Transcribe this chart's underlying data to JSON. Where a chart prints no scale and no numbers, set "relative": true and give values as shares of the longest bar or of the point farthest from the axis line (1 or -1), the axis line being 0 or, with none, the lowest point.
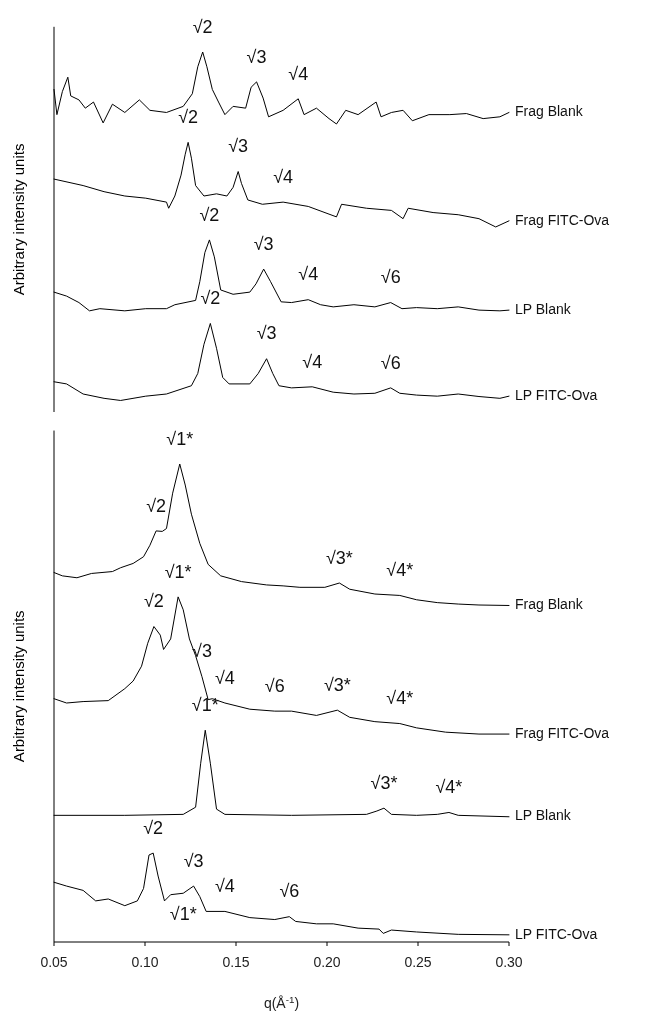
{
  "chart_data": [
    {
      "type": "line",
      "relative": true,
      "ylabel": "Arbitrary intensity units",
      "xlim": [
        0.05,
        0.3
      ],
      "tick_labels": false,
      "series": [
        {
          "name": "Frag Blank",
          "color": "#000000",
          "x": [
            0.05,
            0.0516,
            0.0546,
            0.0576,
            0.0592,
            0.0637,
            0.0672,
            0.0717,
            0.077,
            0.0821,
            0.0889,
            0.0969,
            0.1027,
            0.1118,
            0.121,
            0.126,
            0.129,
            0.1317,
            0.134,
            0.137,
            0.1404,
            0.1439,
            0.1484,
            0.1553,
            0.1583,
            0.1613,
            0.1649,
            0.1679,
            0.1759,
            0.1842,
            0.1874,
            0.1942,
            0.2011,
            0.2052,
            0.2103,
            0.2171,
            0.227,
            0.2297,
            0.2354,
            0.2418,
            0.2469,
            0.256,
            0.2675,
            0.2766,
            0.2858,
            0.295,
            0.3
          ],
          "values": [
            0.896,
            0.826,
            0.89,
            0.93,
            0.878,
            0.867,
            0.844,
            0.861,
            0.803,
            0.855,
            0.832,
            0.867,
            0.838,
            0.832,
            0.849,
            0.884,
            0.959,
            1.0,
            0.959,
            0.896,
            0.861,
            0.826,
            0.849,
            0.844,
            0.902,
            0.917,
            0.872,
            0.82,
            0.838,
            0.87,
            0.826,
            0.844,
            0.815,
            0.8,
            0.838,
            0.826,
            0.861,
            0.82,
            0.832,
            0.838,
            0.809,
            0.826,
            0.826,
            0.829,
            0.815,
            0.82,
            0.832
          ]
        },
        {
          "name": "Frag FITC-Ova",
          "color": "#000000",
          "x": [
            0.05,
            0.066,
            0.0775,
            0.0889,
            0.1004,
            0.1118,
            0.113,
            0.1164,
            0.1198,
            0.1221,
            0.1237,
            0.1255,
            0.1278,
            0.1324,
            0.1393,
            0.145,
            0.1484,
            0.1512,
            0.153,
            0.1565,
            0.1645,
            0.1759,
            0.1897,
            0.2052,
            0.208,
            0.2217,
            0.2354,
            0.2418,
            0.2446,
            0.2583,
            0.2721,
            0.2835,
            0.2927,
            0.3
          ],
          "values": [
            0.647,
            0.629,
            0.612,
            0.6,
            0.594,
            0.583,
            0.566,
            0.6,
            0.658,
            0.716,
            0.749,
            0.705,
            0.629,
            0.6,
            0.606,
            0.6,
            0.624,
            0.668,
            0.635,
            0.589,
            0.577,
            0.583,
            0.571,
            0.542,
            0.577,
            0.566,
            0.56,
            0.537,
            0.566,
            0.554,
            0.548,
            0.537,
            0.514,
            0.531
          ]
        },
        {
          "name": "LP Blank",
          "color": "#000000",
          "x": [
            0.05,
            0.0569,
            0.0637,
            0.0695,
            0.0752,
            0.0889,
            0.1004,
            0.1118,
            0.1164,
            0.1278,
            0.1301,
            0.1329,
            0.1354,
            0.1381,
            0.1416,
            0.1484,
            0.1576,
            0.161,
            0.1652,
            0.169,
            0.1748,
            0.1805,
            0.1897,
            0.1965,
            0.2034,
            0.2148,
            0.2263,
            0.235,
            0.2412,
            0.2492,
            0.2606,
            0.2721,
            0.2835,
            0.295,
            0.3
          ],
          "values": [
            0.333,
            0.322,
            0.304,
            0.281,
            0.287,
            0.281,
            0.287,
            0.287,
            0.298,
            0.31,
            0.362,
            0.443,
            0.478,
            0.431,
            0.339,
            0.327,
            0.333,
            0.356,
            0.397,
            0.362,
            0.306,
            0.304,
            0.312,
            0.298,
            0.292,
            0.298,
            0.292,
            0.304,
            0.287,
            0.29,
            0.287,
            0.292,
            0.283,
            0.281,
            0.283
          ]
        },
        {
          "name": "LP FITC-Ova",
          "color": "#000000",
          "x": [
            0.05,
            0.0569,
            0.066,
            0.0775,
            0.0866,
            0.1004,
            0.1118,
            0.1255,
            0.129,
            0.1324,
            0.1359,
            0.1393,
            0.1427,
            0.1462,
            0.1576,
            0.1622,
            0.1668,
            0.1702,
            0.1736,
            0.1805,
            0.1919,
            0.2034,
            0.2148,
            0.2263,
            0.235,
            0.24,
            0.2492,
            0.2606,
            0.2721,
            0.2835,
            0.295,
            0.3
          ],
          "values": [
            0.084,
            0.078,
            0.05,
            0.038,
            0.032,
            0.044,
            0.05,
            0.073,
            0.107,
            0.188,
            0.246,
            0.177,
            0.096,
            0.078,
            0.078,
            0.107,
            0.148,
            0.107,
            0.073,
            0.067,
            0.07,
            0.055,
            0.05,
            0.052,
            0.067,
            0.052,
            0.047,
            0.044,
            0.05,
            0.043,
            0.038,
            0.044
          ]
        }
      ],
      "annotations": [
        {
          "text": "√2",
          "x": 0.1317,
          "y": 1.0
        },
        {
          "text": "√3",
          "x": 0.1613,
          "y": 0.917
        },
        {
          "text": "√4",
          "x": 0.1842,
          "y": 0.87
        },
        {
          "text": "√2",
          "x": 0.1237,
          "y": 0.749
        },
        {
          "text": "√3",
          "x": 0.1512,
          "y": 0.668
        },
        {
          "text": "√4",
          "x": 0.1759,
          "y": 0.583
        },
        {
          "text": "√2",
          "x": 0.1354,
          "y": 0.478
        },
        {
          "text": "√3",
          "x": 0.1652,
          "y": 0.397
        },
        {
          "text": "√4",
          "x": 0.1897,
          "y": 0.312
        },
        {
          "text": "√6",
          "x": 0.235,
          "y": 0.304
        },
        {
          "text": "√2",
          "x": 0.1359,
          "y": 0.246
        },
        {
          "text": "√3",
          "x": 0.1668,
          "y": 0.148
        },
        {
          "text": "√4",
          "x": 0.1919,
          "y": 0.07
        },
        {
          "text": "√6",
          "x": 0.235,
          "y": 0.067
        }
      ]
    },
    {
      "type": "line",
      "relative": true,
      "ylabel": "Arbitrary intensity units",
      "xlabel": "q(Å$^{-1}$)",
      "xlim": [
        0.05,
        0.3
      ],
      "xticks": [
        0.05,
        {
          "value": 0.1,
          "label": "0.10"
        },
        0.15,
        {
          "value": 0.2,
          "label": "0.20"
        },
        0.25,
        {
          "value": 0.3,
          "label": "0.30"
        }
      ],
      "series": [
        {
          "name": "Frag Blank",
          "color": "#000000",
          "x": [
            0.05,
            0.0546,
            0.0626,
            0.0706,
            0.0821,
            0.0866,
            0.0935,
            0.0992,
            0.1027,
            0.1061,
            0.1095,
            0.1118,
            0.1152,
            0.1191,
            0.1221,
            0.1255,
            0.1301,
            0.1347,
            0.1416,
            0.153,
            0.1668,
            0.1759,
            0.1851,
            0.1988,
            0.2068,
            0.2125,
            0.2263,
            0.24,
            0.2492,
            0.2606,
            0.2721,
            0.2835,
            0.3
          ],
          "values": [
            0.773,
            0.766,
            0.762,
            0.771,
            0.775,
            0.783,
            0.792,
            0.806,
            0.83,
            0.86,
            0.859,
            0.865,
            0.939,
            1.0,
            0.956,
            0.895,
            0.834,
            0.79,
            0.766,
            0.754,
            0.747,
            0.745,
            0.742,
            0.742,
            0.751,
            0.738,
            0.728,
            0.725,
            0.716,
            0.71,
            0.707,
            0.705,
            0.704
          ]
        },
        {
          "name": "Frag FITC-Ova",
          "color": "#000000",
          "x": [
            0.05,
            0.0569,
            0.066,
            0.0798,
            0.0889,
            0.0935,
            0.0981,
            0.1015,
            0.1049,
            0.1084,
            0.1102,
            0.1141,
            0.1182,
            0.121,
            0.1244,
            0.1278,
            0.1313,
            0.1347,
            0.137,
            0.1439,
            0.1576,
            0.1713,
            0.1805,
            0.1942,
            0.2057,
            0.2125,
            0.2263,
            0.24,
            0.2492,
            0.2652,
            0.2835,
            0.3
          ],
          "values": [
            0.509,
            0.5,
            0.503,
            0.505,
            0.53,
            0.546,
            0.577,
            0.625,
            0.66,
            0.642,
            0.612,
            0.634,
            0.722,
            0.695,
            0.634,
            0.599,
            0.555,
            0.507,
            0.509,
            0.5,
            0.487,
            0.483,
            0.483,
            0.474,
            0.485,
            0.47,
            0.461,
            0.457,
            0.448,
            0.439,
            0.435,
            0.435
          ]
        },
        {
          "name": "LP Blank",
          "color": "#000000",
          "x": [
            0.05,
            0.0889,
            0.121,
            0.1278,
            0.1306,
            0.1331,
            0.1359,
            0.1393,
            0.1439,
            0.1805,
            0.2217,
            0.2274,
            0.2313,
            0.2354,
            0.2492,
            0.2606,
            0.267,
            0.2721,
            0.3
          ],
          "values": [
            0.265,
            0.265,
            0.267,
            0.282,
            0.374,
            0.443,
            0.374,
            0.278,
            0.267,
            0.265,
            0.267,
            0.274,
            0.28,
            0.267,
            0.265,
            0.267,
            0.271,
            0.265,
            0.262
          ]
        },
        {
          "name": "LP FITC-Ova",
          "color": "#000000",
          "x": [
            0.05,
            0.0569,
            0.066,
            0.0729,
            0.0798,
            0.0889,
            0.0958,
            0.0992,
            0.1022,
            0.1045,
            0.1072,
            0.1107,
            0.1141,
            0.121,
            0.1267,
            0.1301,
            0.1336,
            0.1439,
            0.1576,
            0.1713,
            0.1793,
            0.1828,
            0.1942,
            0.2034,
            0.2171,
            0.2286,
            0.2309,
            0.2354,
            0.2492,
            0.2721,
            0.3
          ],
          "values": [
            0.125,
            0.117,
            0.108,
            0.086,
            0.09,
            0.076,
            0.086,
            0.112,
            0.182,
            0.186,
            0.138,
            0.086,
            0.099,
            0.102,
            0.117,
            0.095,
            0.064,
            0.064,
            0.051,
            0.047,
            0.053,
            0.043,
            0.038,
            0.038,
            0.029,
            0.027,
            0.018,
            0.025,
            0.021,
            0.016,
            0.015
          ]
        }
      ],
      "annotations": [
        {
          "text": "√1*",
          "x": 0.1191,
          "y": 1.0
        },
        {
          "text": "√2",
          "x": 0.1061,
          "y": 0.86
        },
        {
          "text": "√3*",
          "x": 0.2068,
          "y": 0.751
        },
        {
          "text": "√4*",
          "x": 0.24,
          "y": 0.725
        },
        {
          "text": "√1*",
          "x": 0.1182,
          "y": 0.722
        },
        {
          "text": "√2",
          "x": 0.1049,
          "y": 0.66
        },
        {
          "text": "√3",
          "x": 0.1313,
          "y": 0.555
        },
        {
          "text": "√4",
          "x": 0.1439,
          "y": 0.5
        },
        {
          "text": "√6",
          "x": 0.1713,
          "y": 0.483
        },
        {
          "text": "√3*",
          "x": 0.2057,
          "y": 0.485
        },
        {
          "text": "√4*",
          "x": 0.24,
          "y": 0.457
        },
        {
          "text": "√1*",
          "x": 0.1331,
          "y": 0.443
        },
        {
          "text": "√3*",
          "x": 0.2313,
          "y": 0.28
        },
        {
          "text": "√4*",
          "x": 0.267,
          "y": 0.271
        },
        {
          "text": "√2",
          "x": 0.1045,
          "y": 0.186
        },
        {
          "text": "√3",
          "x": 0.1267,
          "y": 0.117
        },
        {
          "text": "√4",
          "x": 0.1439,
          "y": 0.064
        },
        {
          "text": "√6",
          "x": 0.1793,
          "y": 0.053
        },
        {
          "text": "√1*",
          "x": 0.121,
          "y": 0.102
        }
      ]
    }
  ]
}
